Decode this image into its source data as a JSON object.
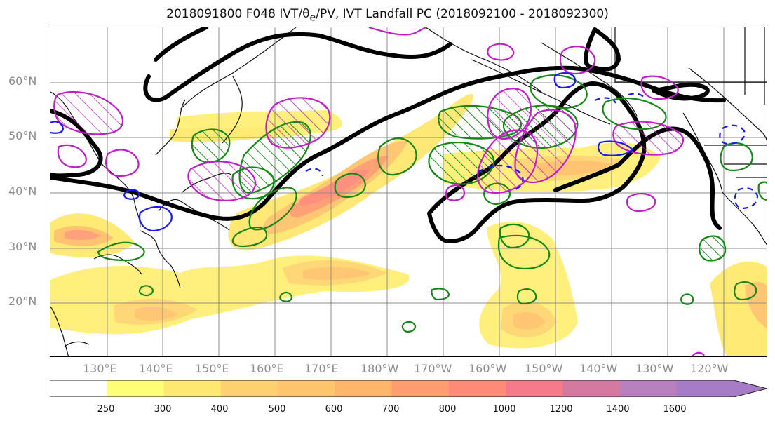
{
  "figure": {
    "title_prefix": "2018091800 F048 IVT/",
    "title_theta": "θ",
    "title_sub": "e",
    "title_suffix": "/PV, IVT Landfall PC (2018092100 - 2018092300)"
  },
  "map": {
    "lat_labels": [
      "60°N",
      "50°N",
      "40°N",
      "30°N",
      "20°N"
    ],
    "lon_labels": [
      "130°E",
      "140°E",
      "150°E",
      "160°E",
      "170°E",
      "180°W",
      "170°W",
      "160°W",
      "150°W",
      "140°W",
      "130°W",
      "120°W"
    ],
    "layers": [
      {
        "name": "IVT filled contours",
        "color": "#ffd86a"
      },
      {
        "name": "theta_e / PV contour",
        "color": "#000000"
      },
      {
        "name": "green contours",
        "color": "#178717"
      },
      {
        "name": "magenta contours",
        "color": "#c21ec8"
      },
      {
        "name": "blue contours",
        "color": "#1a1af0"
      }
    ]
  },
  "colorbar": {
    "tick_labels": [
      "250",
      "300",
      "400",
      "500",
      "600",
      "700",
      "800",
      "1000",
      "1200",
      "1400",
      "1600"
    ],
    "bins": [
      {
        "range": "0-250",
        "color": "#ffffff"
      },
      {
        "range": "250-300",
        "color": "#ffff77"
      },
      {
        "range": "300-400",
        "color": "#ffe86f"
      },
      {
        "range": "400-500",
        "color": "#ffd06f"
      },
      {
        "range": "500-600",
        "color": "#ffc56c"
      },
      {
        "range": "600-700",
        "color": "#ffb56a"
      },
      {
        "range": "700-800",
        "color": "#ff9d70"
      },
      {
        "range": "800-1000",
        "color": "#ff8a78"
      },
      {
        "range": "1000-1200",
        "color": "#f67a8a"
      },
      {
        "range": "1200-1400",
        "color": "#d47aa1"
      },
      {
        "range": "1400-1600",
        "color": "#b980bf"
      },
      {
        "range": "1600+",
        "color": "#a77cc7"
      }
    ]
  }
}
